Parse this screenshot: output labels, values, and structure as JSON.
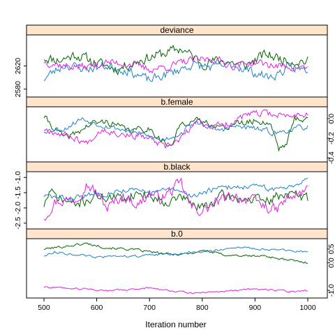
{
  "chart_data": {
    "type": "line",
    "xlabel": "Iteration number",
    "xlim": [
      500,
      1000
    ],
    "x_ticks": [
      500,
      600,
      700,
      800,
      900,
      1000
    ],
    "strip_color": "#ffe5cc",
    "series_colors": [
      "#006400",
      "#1e82c8",
      "#e61ee6"
    ],
    "panels": [
      {
        "title": "deviance",
        "ylim": [
          2570,
          2670
        ],
        "y_ticks": [
          2580,
          2620
        ],
        "y_tick_labels": [
          "2580",
          "2620"
        ],
        "n_points": 200,
        "series": [
          {
            "knots": [
              [
                500,
                2635
              ],
              [
                530,
                2630
              ],
              [
                560,
                2640
              ],
              [
                600,
                2625
              ],
              [
                640,
                2615
              ],
              [
                680,
                2630
              ],
              [
                720,
                2640
              ],
              [
                760,
                2650
              ],
              [
                800,
                2625
              ],
              [
                840,
                2630
              ],
              [
                880,
                2620
              ],
              [
                920,
                2640
              ],
              [
                960,
                2630
              ],
              [
                1000,
                2628
              ]
            ],
            "noise": 8,
            "seed": 11
          },
          {
            "knots": [
              [
                500,
                2598
              ],
              [
                510,
                2605
              ],
              [
                540,
                2622
              ],
              [
                580,
                2615
              ],
              [
                620,
                2620
              ],
              [
                660,
                2612
              ],
              [
                700,
                2595
              ],
              [
                740,
                2608
              ],
              [
                780,
                2622
              ],
              [
                820,
                2618
              ],
              [
                860,
                2622
              ],
              [
                900,
                2608
              ],
              [
                930,
                2600
              ],
              [
                960,
                2615
              ],
              [
                1000,
                2614
              ]
            ],
            "noise": 7,
            "seed": 23
          },
          {
            "knots": [
              [
                500,
                2628
              ],
              [
                540,
                2620
              ],
              [
                580,
                2618
              ],
              [
                620,
                2626
              ],
              [
                660,
                2624
              ],
              [
                700,
                2614
              ],
              [
                740,
                2620
              ],
              [
                780,
                2630
              ],
              [
                820,
                2632
              ],
              [
                860,
                2620
              ],
              [
                900,
                2626
              ],
              [
                940,
                2620
              ],
              [
                980,
                2618
              ],
              [
                1000,
                2616
              ]
            ],
            "noise": 6,
            "seed": 37
          }
        ]
      },
      {
        "title": "b.female",
        "ylim": [
          -0.42,
          0.1
        ],
        "y_ticks": [
          -0.4,
          -0.2,
          0.0
        ],
        "y_tick_labels": [
          "-0.4",
          "-0.2",
          "0.0"
        ],
        "n_points": 200,
        "series": [
          {
            "knots": [
              [
                500,
                0.02
              ],
              [
                520,
                -0.1
              ],
              [
                540,
                -0.2
              ],
              [
                560,
                -0.15
              ],
              [
                590,
                -0.05
              ],
              [
                620,
                -0.03
              ],
              [
                660,
                -0.12
              ],
              [
                700,
                -0.1
              ],
              [
                720,
                -0.2
              ],
              [
                740,
                -0.3
              ],
              [
                760,
                -0.05
              ],
              [
                780,
                -0.02
              ],
              [
                820,
                -0.05
              ],
              [
                840,
                -0.1
              ],
              [
                860,
                -0.05
              ],
              [
                880,
                -0.05
              ],
              [
                900,
                -0.02
              ],
              [
                930,
                -0.05
              ],
              [
                945,
                -0.3
              ],
              [
                960,
                -0.25
              ],
              [
                975,
                0.0
              ],
              [
                1000,
                0.0
              ]
            ],
            "noise": 0.03,
            "seed": 41
          },
          {
            "knots": [
              [
                500,
                -0.12
              ],
              [
                540,
                -0.1
              ],
              [
                570,
                0.0
              ],
              [
                600,
                -0.05
              ],
              [
                640,
                -0.1
              ],
              [
                680,
                -0.15
              ],
              [
                720,
                -0.22
              ],
              [
                760,
                -0.15
              ],
              [
                780,
                -0.05
              ],
              [
                800,
                -0.05
              ],
              [
                830,
                -0.12
              ],
              [
                860,
                -0.08
              ],
              [
                900,
                -0.1
              ],
              [
                940,
                -0.15
              ],
              [
                960,
                -0.12
              ],
              [
                980,
                -0.1
              ],
              [
                1000,
                -0.08
              ]
            ],
            "noise": 0.025,
            "seed": 53
          },
          {
            "knots": [
              [
                500,
                -0.1
              ],
              [
                530,
                -0.15
              ],
              [
                560,
                -0.2
              ],
              [
                580,
                -0.25
              ],
              [
                610,
                -0.1
              ],
              [
                640,
                -0.15
              ],
              [
                680,
                -0.18
              ],
              [
                700,
                -0.2
              ],
              [
                730,
                -0.3
              ],
              [
                760,
                -0.2
              ],
              [
                790,
                -0.03
              ],
              [
                820,
                -0.08
              ],
              [
                850,
                -0.05
              ],
              [
                880,
                0.03
              ],
              [
                900,
                0.05
              ],
              [
                930,
                0.05
              ],
              [
                960,
                0.03
              ],
              [
                990,
                0.05
              ],
              [
                1000,
                0.05
              ]
            ],
            "noise": 0.03,
            "seed": 67
          }
        ]
      },
      {
        "title": "b.black",
        "ylim": [
          -2.62,
          -0.88
        ],
        "y_ticks": [
          -2.5,
          -2.0,
          -1.5,
          -1.0
        ],
        "y_tick_labels": [
          "-2.5",
          "-2.0",
          "-1.5",
          "-1.0"
        ],
        "n_points": 200,
        "series": [
          {
            "knots": [
              [
                500,
                -1.9
              ],
              [
                510,
                -1.5
              ],
              [
                530,
                -1.7
              ],
              [
                560,
                -1.9
              ],
              [
                600,
                -1.6
              ],
              [
                640,
                -1.7
              ],
              [
                680,
                -1.5
              ],
              [
                700,
                -1.6
              ],
              [
                740,
                -1.8
              ],
              [
                760,
                -1.6
              ],
              [
                780,
                -1.9
              ],
              [
                800,
                -2.0
              ],
              [
                840,
                -1.6
              ],
              [
                880,
                -1.7
              ],
              [
                920,
                -1.8
              ],
              [
                960,
                -1.5
              ],
              [
                980,
                -1.6
              ],
              [
                1000,
                -1.7
              ]
            ],
            "noise": 0.15,
            "seed": 71
          },
          {
            "knots": [
              [
                500,
                -1.6
              ],
              [
                540,
                -1.7
              ],
              [
                580,
                -1.6
              ],
              [
                620,
                -1.5
              ],
              [
                660,
                -1.4
              ],
              [
                700,
                -1.5
              ],
              [
                740,
                -1.4
              ],
              [
                780,
                -1.6
              ],
              [
                820,
                -1.4
              ],
              [
                860,
                -1.3
              ],
              [
                900,
                -1.3
              ],
              [
                940,
                -1.4
              ],
              [
                980,
                -1.2
              ],
              [
                1000,
                -1.0
              ]
            ],
            "noise": 0.08,
            "seed": 83
          },
          {
            "knots": [
              [
                500,
                -2.3
              ],
              [
                520,
                -1.8
              ],
              [
                560,
                -1.7
              ],
              [
                580,
                -1.2
              ],
              [
                600,
                -1.5
              ],
              [
                620,
                -2.0
              ],
              [
                650,
                -1.6
              ],
              [
                680,
                -1.9
              ],
              [
                700,
                -1.5
              ],
              [
                720,
                -1.7
              ],
              [
                760,
                -1.2
              ],
              [
                780,
                -2.0
              ],
              [
                800,
                -2.1
              ],
              [
                830,
                -1.8
              ],
              [
                860,
                -1.6
              ],
              [
                900,
                -1.8
              ],
              [
                940,
                -2.1
              ],
              [
                960,
                -1.7
              ],
              [
                980,
                -1.6
              ],
              [
                1000,
                -1.4
              ]
            ],
            "noise": 0.16,
            "seed": 97
          }
        ]
      },
      {
        "title": "b.0",
        "ylim": [
          -1.2,
          0.8
        ],
        "y_ticks": [
          -1.0,
          0.0,
          0.5
        ],
        "y_tick_labels": [
          "-1.0",
          "0.0",
          "0.5"
        ],
        "n_points": 200,
        "series": [
          {
            "knots": [
              [
                500,
                0.5
              ],
              [
                540,
                0.6
              ],
              [
                580,
                0.7
              ],
              [
                620,
                0.55
              ],
              [
                660,
                0.5
              ],
              [
                700,
                0.4
              ],
              [
                740,
                0.3
              ],
              [
                780,
                0.35
              ],
              [
                800,
                0.45
              ],
              [
                840,
                0.3
              ],
              [
                880,
                0.25
              ],
              [
                920,
                0.25
              ],
              [
                960,
                0.1
              ],
              [
                1000,
                0.0
              ]
            ],
            "noise": 0.04,
            "seed": 101
          },
          {
            "knots": [
              [
                500,
                0.25
              ],
              [
                520,
                0.4
              ],
              [
                560,
                0.3
              ],
              [
                600,
                0.2
              ],
              [
                640,
                0.25
              ],
              [
                680,
                0.25
              ],
              [
                720,
                0.3
              ],
              [
                760,
                0.35
              ],
              [
                800,
                0.4
              ],
              [
                840,
                0.5
              ],
              [
                880,
                0.55
              ],
              [
                920,
                0.5
              ],
              [
                960,
                0.45
              ],
              [
                1000,
                0.38
              ]
            ],
            "noise": 0.035,
            "seed": 113
          },
          {
            "knots": [
              [
                500,
                -0.88
              ],
              [
                540,
                -0.9
              ],
              [
                580,
                -0.95
              ],
              [
                620,
                -1.0
              ],
              [
                660,
                -0.98
              ],
              [
                700,
                -0.9
              ],
              [
                740,
                -1.0
              ],
              [
                780,
                -1.1
              ],
              [
                820,
                -1.05
              ],
              [
                860,
                -1.0
              ],
              [
                900,
                -0.95
              ],
              [
                940,
                -1.0
              ],
              [
                980,
                -1.05
              ],
              [
                1000,
                -1.0
              ]
            ],
            "noise": 0.03,
            "seed": 127
          }
        ]
      }
    ]
  }
}
